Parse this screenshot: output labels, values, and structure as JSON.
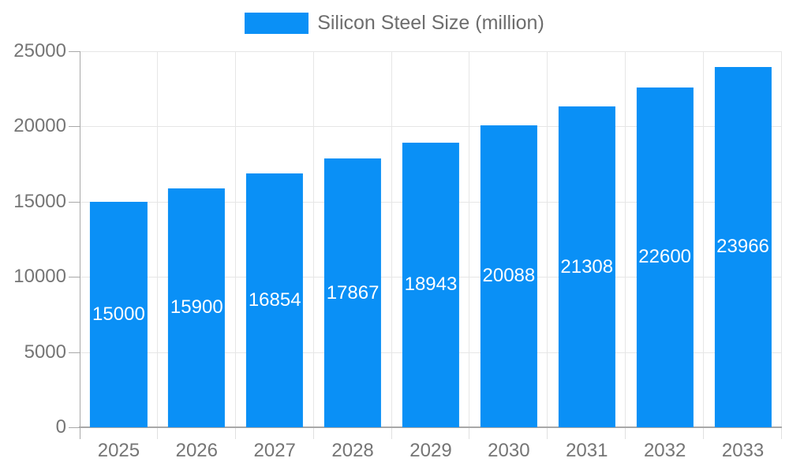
{
  "legend": {
    "label": "Silicon Steel Size (million)",
    "position": "top-center"
  },
  "chart_data": {
    "type": "bar",
    "title": "",
    "xlabel": "",
    "ylabel": "",
    "series_name": "Silicon Steel Size (million)",
    "categories": [
      "2025",
      "2026",
      "2027",
      "2028",
      "2029",
      "2030",
      "2031",
      "2032",
      "2033"
    ],
    "values": [
      15000,
      15900,
      16854,
      17867,
      18943,
      20088,
      21308,
      22600,
      23966
    ],
    "ylim": [
      0,
      25000
    ],
    "yticks": [
      0,
      5000,
      10000,
      15000,
      20000,
      25000
    ],
    "grid": true,
    "value_label_position": "inside-center",
    "colors": {
      "bar": "#0a90f6",
      "grid": "#e6e6e6",
      "axis": "#a8a8a8",
      "minor_tick": "#e0e0e0",
      "tick_text": "#757575",
      "legend_text": "#6d6d6d",
      "value_label": "#ffffff",
      "background": "#ffffff"
    }
  }
}
